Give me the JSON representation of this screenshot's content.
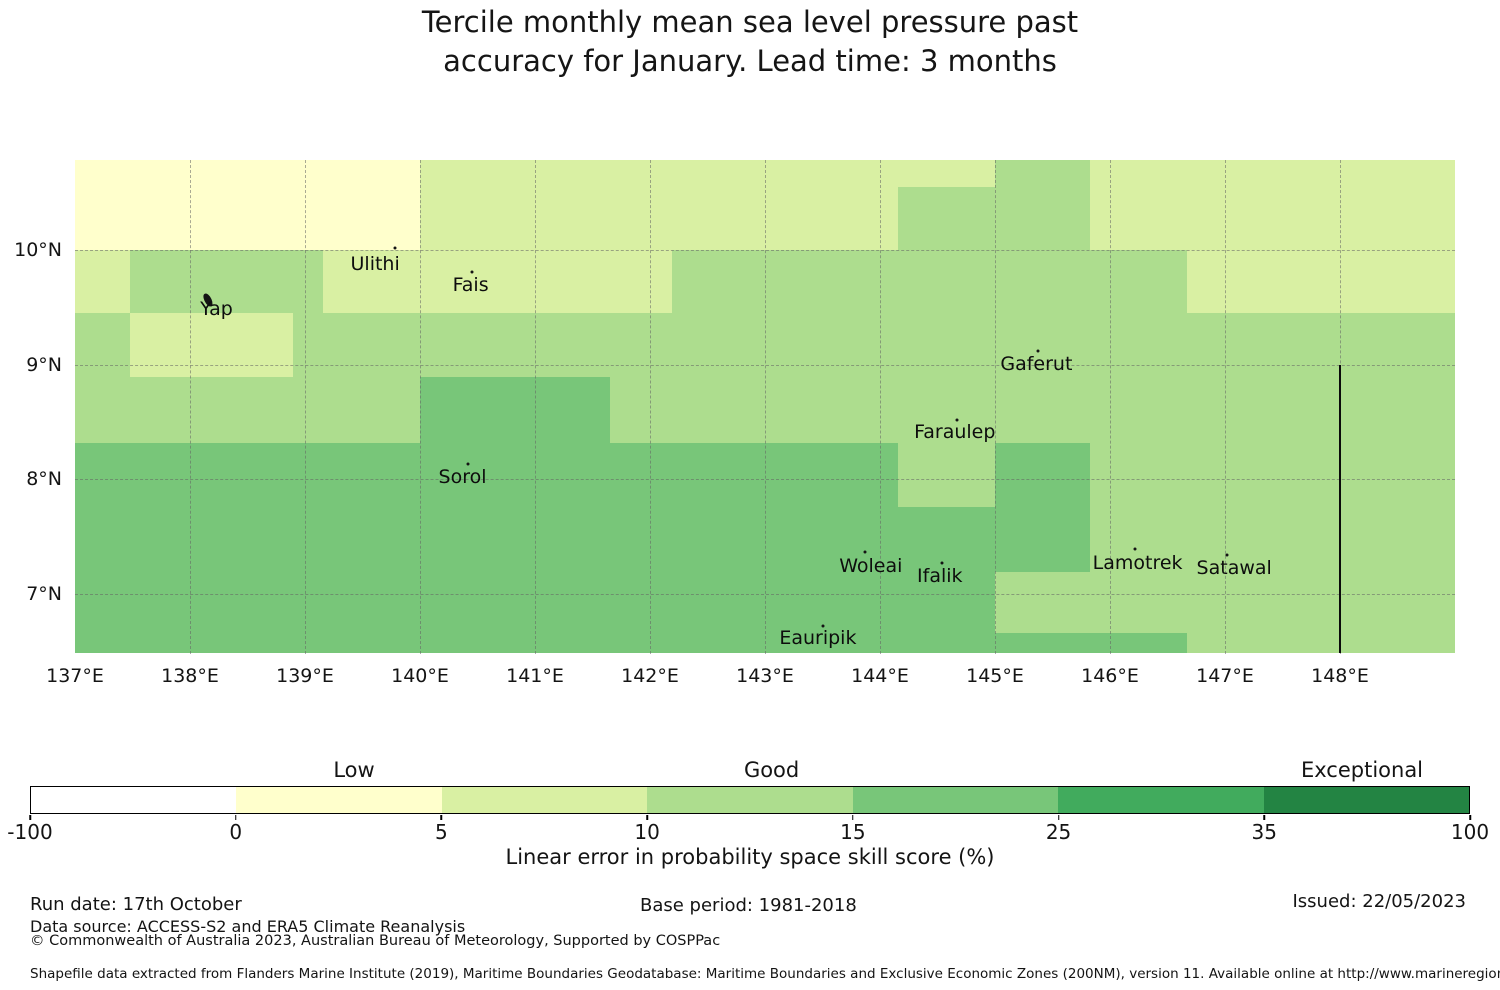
{
  "title": {
    "line1": "Tercile monthly mean sea level pressure past",
    "line2": "accuracy for January. Lead time: 3 months"
  },
  "chart_data": {
    "type": "heatmap",
    "title": "Tercile monthly mean sea level pressure past accuracy for January. Lead time: 3 months",
    "legend_label": "Linear error in probability space skill score (%)",
    "lon_range": [
      137,
      149
    ],
    "lat_range": [
      6.477,
      10.79
    ],
    "x_ticks": [
      137,
      138,
      139,
      140,
      141,
      142,
      143,
      144,
      145,
      146,
      147,
      148
    ],
    "x_unit": "°E",
    "y_ticks": [
      7,
      8,
      9,
      10
    ],
    "y_unit": "°N",
    "grid": true,
    "bin_edges": [
      -100,
      0,
      5,
      10,
      15,
      25,
      35,
      100
    ],
    "bin_colors": [
      "#ffffff",
      "#ffffcc",
      "#d9f0a3",
      "#addd8e",
      "#78c679",
      "#41ab5d",
      "#238443"
    ],
    "cells": [
      [
        137.0,
        140.0,
        10.0,
        10.79,
        1
      ],
      [
        140.0,
        144.16,
        10.0,
        10.79,
        2
      ],
      [
        144.16,
        145.0,
        10.55,
        10.79,
        2
      ],
      [
        144.16,
        145.0,
        10.0,
        10.55,
        3
      ],
      [
        145.0,
        145.83,
        10.0,
        10.79,
        3
      ],
      [
        145.83,
        149.0,
        10.0,
        10.79,
        2
      ],
      [
        137.0,
        137.48,
        9.45,
        10.0,
        2
      ],
      [
        137.48,
        139.16,
        9.45,
        10.0,
        3
      ],
      [
        139.16,
        142.19,
        9.45,
        10.0,
        2
      ],
      [
        142.19,
        146.67,
        9.45,
        10.0,
        3
      ],
      [
        146.67,
        149.0,
        9.45,
        10.0,
        2
      ],
      [
        137.0,
        149.0,
        8.32,
        9.45,
        3
      ],
      [
        137.48,
        138.9,
        8.89,
        9.45,
        2
      ],
      [
        140.0,
        141.65,
        8.32,
        8.89,
        4
      ],
      [
        137.0,
        145.83,
        6.477,
        8.32,
        4
      ],
      [
        145.83,
        149.0,
        6.477,
        8.32,
        3
      ],
      [
        144.16,
        145.0,
        7.76,
        8.32,
        3
      ],
      [
        145.0,
        145.83,
        6.66,
        7.19,
        3
      ],
      [
        145.83,
        146.67,
        6.477,
        6.66,
        4
      ]
    ],
    "eez_line": {
      "lon": 148,
      "lat_top": 9.0,
      "lat_bottom": 6.477
    },
    "islands": [
      {
        "name": "Yap",
        "lon": 138.23,
        "lat": 9.49,
        "mlon": 138.16,
        "mlat": 9.57,
        "big": true
      },
      {
        "name": "Ulithi",
        "lon": 139.61,
        "lat": 9.88,
        "mlon": 139.78,
        "mlat": 10.02
      },
      {
        "name": "Fais",
        "lon": 140.44,
        "lat": 9.7,
        "mlon": 140.45,
        "mlat": 9.81
      },
      {
        "name": "Sorol",
        "lon": 140.37,
        "lat": 8.02,
        "mlon": 140.42,
        "mlat": 8.13
      },
      {
        "name": "Gaferut",
        "lon": 145.36,
        "lat": 9.01,
        "mlon": 145.37,
        "mlat": 9.12
      },
      {
        "name": "Faraulep",
        "lon": 144.65,
        "lat": 8.41,
        "mlon": 144.67,
        "mlat": 8.52
      },
      {
        "name": "Woleai",
        "lon": 143.92,
        "lat": 7.24,
        "mlon": 143.87,
        "mlat": 7.36
      },
      {
        "name": "Ifalik",
        "lon": 144.52,
        "lat": 7.15,
        "mlon": 144.54,
        "mlat": 7.27
      },
      {
        "name": "Eauripik",
        "lon": 143.46,
        "lat": 6.61,
        "mlon": 143.5,
        "mlat": 6.72
      },
      {
        "name": "Lamotrek",
        "lon": 146.24,
        "lat": 7.27,
        "mlon": 146.22,
        "mlat": 7.39
      },
      {
        "name": "Satawal",
        "lon": 147.08,
        "lat": 7.22,
        "mlon": 147.02,
        "mlat": 7.34
      }
    ],
    "colorbar": {
      "tick_labels": [
        "-100",
        "0",
        "5",
        "10",
        "15",
        "25",
        "35",
        "100"
      ],
      "category_labels": [
        {
          "text": "Low",
          "pos": 0.225
        },
        {
          "text": "Good",
          "pos": 0.515
        },
        {
          "text": "Exceptional",
          "pos": 0.925
        }
      ],
      "axis_label": "Linear error in probability space skill score (%)"
    }
  },
  "footer": {
    "run_date": "Run date: 17th October",
    "data_source": "Data source: ACCESS-S2 and ERA5 Climate Reanalysis",
    "copyright": "© Commonwealth of Australia 2023, Australian Bureau of Meteorology, Supported by COSPPac",
    "base_period": "Base period: 1981-2018",
    "issued": "Issued: 22/05/2023",
    "shapefile": "Shapefile data extracted from Flanders Marine Institute (2019), Maritime Boundaries Geodatabase: Maritime Boundaries and Exclusive Economic Zones (200NM), version 11. Available online at http://www.marineregions.org/."
  }
}
